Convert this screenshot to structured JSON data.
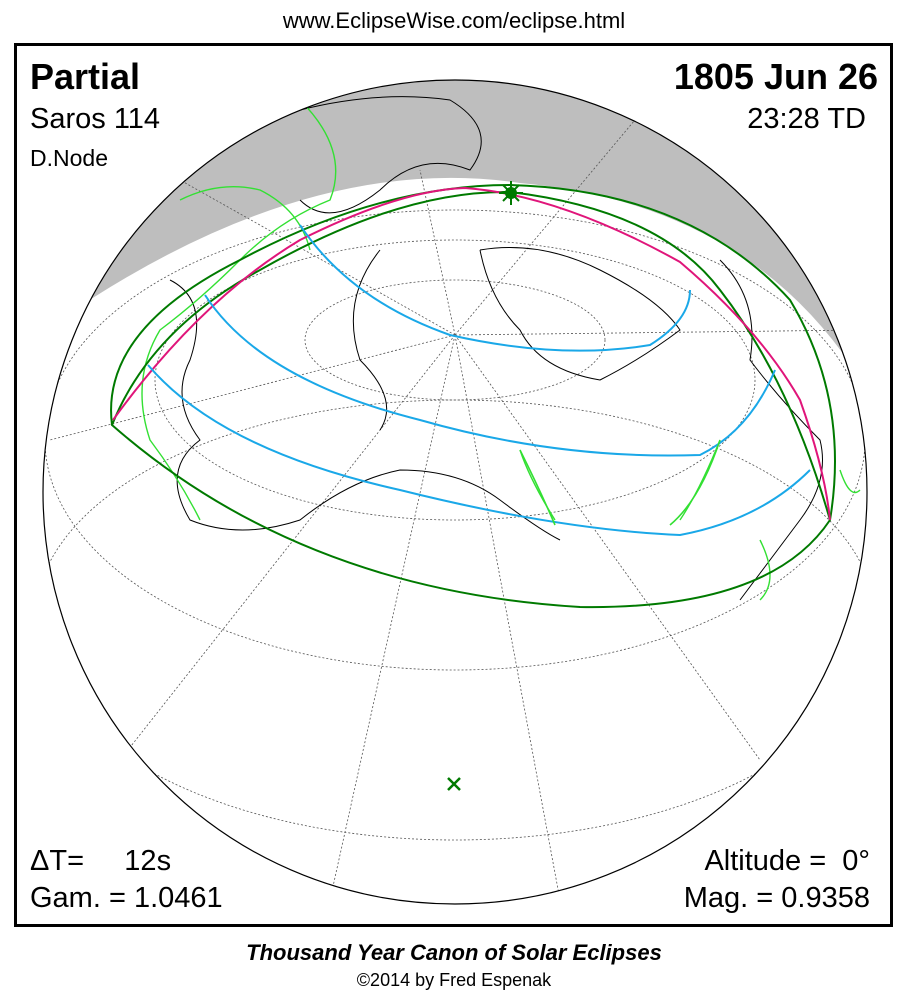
{
  "url": "www.EclipseWise.com/eclipse.html",
  "eclipse": {
    "type": "Partial",
    "saros": "Saros 114",
    "node": "D.Node",
    "date": "1805 Jun 26",
    "time": "23:28 TD",
    "delta_t": "ΔT=     12s",
    "gamma": "Gam. = 1.0461",
    "altitude": "Altitude =  0°",
    "magnitude": "Mag. = 0.9358"
  },
  "footer": {
    "title": "Thousand Year Canon of Solar Eclipses",
    "copyright": "©2014 by Fred Espenak"
  },
  "colors": {
    "night": "#bebebe",
    "penumbra_limits": "#007a00",
    "rise_set_curve": "#e0157a",
    "magnitude_curves": "#1aa8e8",
    "coastlines": "#000000",
    "borders": "#33e033",
    "graticule": "#555555"
  },
  "markers": {
    "greatest_eclipse": "star-icon",
    "sub_solar_point": "x-icon"
  }
}
